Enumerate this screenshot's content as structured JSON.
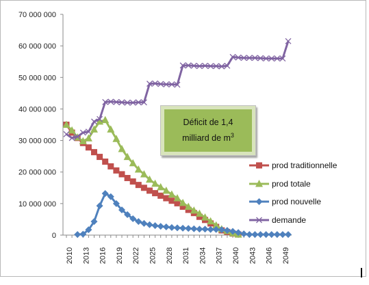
{
  "chart_data": {
    "type": "line",
    "x": [
      2010,
      2011,
      2012,
      2013,
      2014,
      2015,
      2016,
      2017,
      2018,
      2019,
      2020,
      2021,
      2022,
      2023,
      2024,
      2025,
      2026,
      2027,
      2028,
      2029,
      2030,
      2031,
      2032,
      2033,
      2034,
      2035,
      2036,
      2037,
      2038,
      2039,
      2040,
      2041,
      2042,
      2043,
      2044,
      2045,
      2046,
      2047,
      2048,
      2049,
      2050
    ],
    "x_tick_labels": [
      "2010",
      "2013",
      "2016",
      "2019",
      "2022",
      "2025",
      "2028",
      "2031",
      "2034",
      "2037",
      "2040",
      "2043",
      "2046",
      "2049"
    ],
    "y_tick_labels": [
      "0",
      "10 000 000",
      "20 000 000",
      "30 000 000",
      "40 000 000",
      "50 000 000",
      "60 000 000",
      "70 000 000"
    ],
    "ylim": [
      0,
      70000000
    ],
    "grid": false,
    "legend_position": "right",
    "series": [
      {
        "name": "prod traditionnelle",
        "color": "#c0504d",
        "marker": "square",
        "values": [
          35000000,
          32500000,
          30800000,
          29200000,
          27800000,
          26300000,
          24800000,
          23300000,
          21800000,
          20500000,
          19300000,
          18100000,
          17000000,
          15900000,
          15000000,
          14100000,
          13300000,
          12500000,
          11700000,
          10900000,
          10100000,
          9000000,
          8000000,
          7000000,
          5800000,
          4800000,
          3700000,
          2600000,
          1500000,
          1000000,
          500000,
          200000,
          null,
          null,
          null,
          null,
          null,
          null,
          null,
          null,
          null
        ]
      },
      {
        "name": "prod totale",
        "color": "#9bbb59",
        "marker": "triangle",
        "values": [
          35000000,
          33200000,
          31000000,
          29800000,
          30700000,
          33500000,
          36000000,
          36500000,
          33500000,
          30500000,
          27300000,
          24800000,
          22800000,
          20800000,
          19300000,
          17600000,
          16300000,
          15200000,
          14100000,
          12900000,
          11700000,
          10200000,
          9000000,
          7800000,
          6800000,
          5600000,
          4400000,
          3100000,
          1900000,
          1300000,
          600000,
          200000,
          null,
          null,
          null,
          null,
          null,
          null,
          null,
          null,
          null
        ]
      },
      {
        "name": "prod nouvelle",
        "color": "#4f81bd",
        "marker": "diamond",
        "values": [
          null,
          null,
          200000,
          300000,
          1700000,
          4300000,
          9300000,
          13200000,
          12200000,
          10000000,
          8000000,
          6500000,
          5200000,
          4300000,
          3700000,
          3300000,
          3000000,
          2800000,
          2600000,
          2400000,
          2300000,
          2200000,
          2100000,
          2000000,
          1900000,
          1900000,
          1800000,
          1800000,
          1700000,
          1500000,
          1200000,
          800000,
          400000,
          200000,
          200000,
          200000,
          200000,
          200000,
          200000,
          200000,
          200000
        ]
      },
      {
        "name": "demande",
        "color": "#8064a2",
        "marker": "x",
        "values": [
          32000000,
          30800000,
          31200000,
          32500000,
          32800000,
          36000000,
          36800000,
          42200000,
          42300000,
          42200000,
          42100000,
          42000000,
          42000000,
          42100000,
          42100000,
          48000000,
          48100000,
          47900000,
          47800000,
          47800000,
          47700000,
          53800000,
          53800000,
          53700000,
          53600000,
          53700000,
          53600000,
          53600000,
          53500000,
          53700000,
          56500000,
          56300000,
          56200000,
          56200000,
          56200000,
          56100000,
          56000000,
          56000000,
          56000000,
          56000000,
          61500000
        ]
      }
    ],
    "annotation": {
      "line1": "Déficit de 1,4",
      "line2_text": "milliard  de m",
      "line2_sup": "3"
    }
  }
}
